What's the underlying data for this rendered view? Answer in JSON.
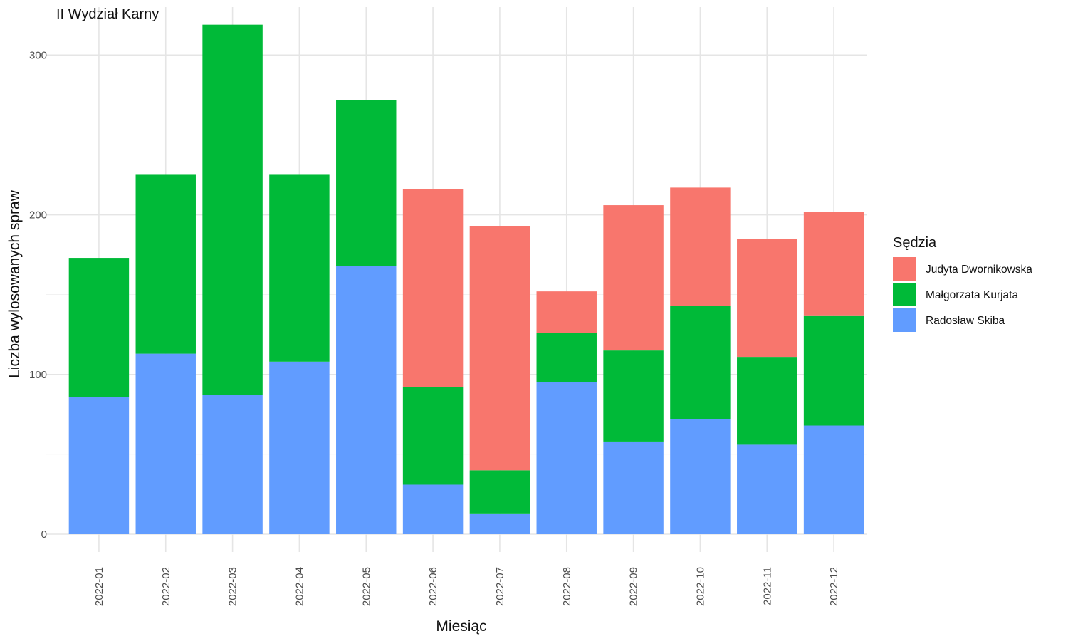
{
  "chart_data": {
    "type": "bar",
    "stacked": true,
    "title": "II Wydział Karny",
    "xlabel": "Miesiąc",
    "ylabel": "Liczba wylosowanych spraw",
    "categories": [
      "2022-01",
      "2022-02",
      "2022-03",
      "2022-04",
      "2022-05",
      "2022-06",
      "2022-07",
      "2022-08",
      "2022-09",
      "2022-10",
      "2022-11",
      "2022-12"
    ],
    "series": [
      {
        "name": "Radosław Skiba",
        "color": "#619CFF",
        "values": [
          86,
          113,
          87,
          108,
          168,
          31,
          13,
          95,
          58,
          72,
          56,
          68
        ]
      },
      {
        "name": "Małgorzata Kurjata",
        "color": "#00BA38",
        "values": [
          87,
          112,
          232,
          117,
          104,
          61,
          27,
          31,
          57,
          71,
          55,
          69
        ]
      },
      {
        "name": "Judyta Dwornikowska",
        "color": "#F8766D",
        "values": [
          0,
          0,
          0,
          0,
          0,
          124,
          153,
          26,
          91,
          74,
          74,
          65
        ]
      }
    ],
    "ylim": [
      0,
      330
    ],
    "yticks": [
      0,
      100,
      200,
      300
    ],
    "grid": true,
    "legend": {
      "title": "Sędzia",
      "position": "right",
      "order": [
        "Judyta Dwornikowska",
        "Małgorzata Kurjata",
        "Radosław Skiba"
      ]
    }
  }
}
